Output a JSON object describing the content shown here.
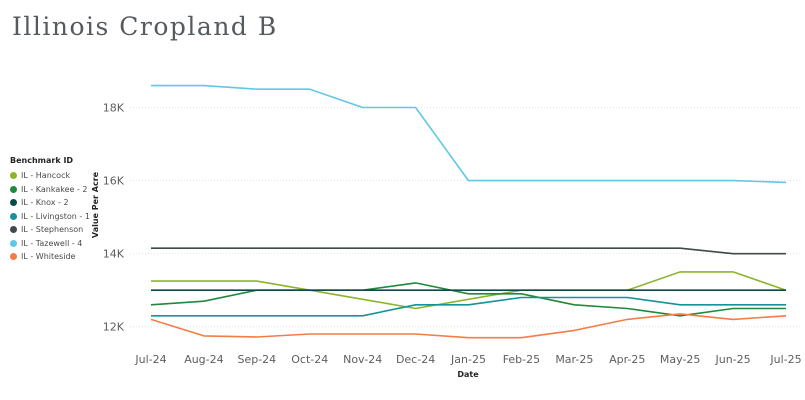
{
  "page_title": "Illinois Cropland B",
  "chart_data": {
    "type": "line",
    "title": "Illinois Cropland B",
    "xlabel": "Date",
    "ylabel": "Value Per Acre",
    "categories": [
      "Jul-24",
      "Aug-24",
      "Sep-24",
      "Oct-24",
      "Nov-24",
      "Dec-24",
      "Jan-25",
      "Feb-25",
      "Mar-25",
      "Apr-25",
      "May-25",
      "Jun-25",
      "Jul-25"
    ],
    "yticks": [
      12000,
      14000,
      16000,
      18000
    ],
    "ytick_labels": [
      "12K",
      "14K",
      "16K",
      "18K"
    ],
    "ylim": [
      11500,
      19300
    ],
    "grid": "horizontal dotted",
    "legend_title": "Benchmark ID",
    "legend_position": "left",
    "series": [
      {
        "name": "IL - Hancock",
        "color": "#8db52c",
        "values": [
          13250,
          13250,
          13250,
          13000,
          12750,
          12500,
          12750,
          13000,
          13000,
          13000,
          13500,
          13500,
          13000
        ]
      },
      {
        "name": "IL - Kankakee - 2",
        "color": "#1f8a3c",
        "values": [
          12600,
          12700,
          13000,
          13000,
          13000,
          13200,
          12900,
          12900,
          12600,
          12500,
          12300,
          12500,
          12500
        ]
      },
      {
        "name": "IL - Knox - 2",
        "color": "#0c4a4a",
        "values": [
          13000,
          13000,
          13000,
          13000,
          13000,
          13000,
          13000,
          13000,
          13000,
          13000,
          13000,
          13000,
          13000
        ]
      },
      {
        "name": "IL - Livingston - 1",
        "color": "#15929a",
        "values": [
          12300,
          12300,
          12300,
          12300,
          12300,
          12600,
          12600,
          12800,
          12800,
          12800,
          12600,
          12600,
          12600
        ]
      },
      {
        "name": "IL - Stephenson",
        "color": "#3f4a4a",
        "values": [
          14150,
          14150,
          14150,
          14150,
          14150,
          14150,
          14150,
          14150,
          14150,
          14150,
          14150,
          14000,
          14000
        ]
      },
      {
        "name": "IL - Tazewell - 4",
        "color": "#5fc8e6",
        "values": [
          18600,
          18600,
          18500,
          18500,
          18000,
          18000,
          16000,
          16000,
          16000,
          16000,
          16000,
          16000,
          15950
        ]
      },
      {
        "name": "IL - Whiteside",
        "color": "#f47c46",
        "values": [
          12200,
          11750,
          11720,
          11800,
          11800,
          11800,
          11700,
          11700,
          11900,
          12200,
          12350,
          12200,
          12300
        ]
      }
    ]
  }
}
